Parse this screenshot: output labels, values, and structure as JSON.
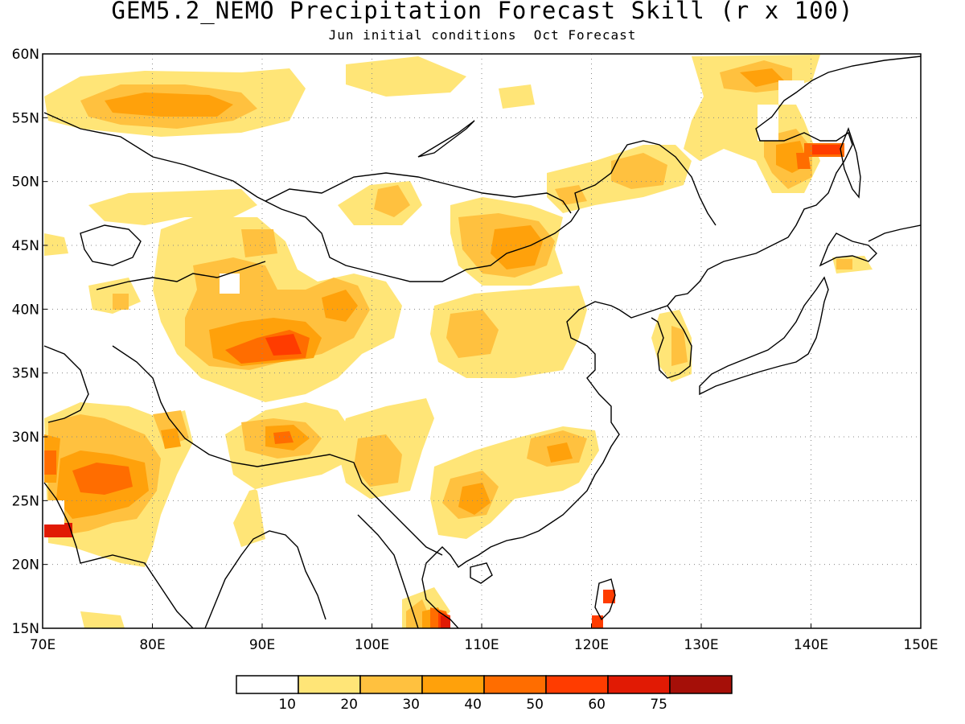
{
  "header": {
    "title": "GEM5.2_NEMO Precipitation Forecast Skill (r x 100)",
    "subtitle": "Jun initial conditions  Oct Forecast"
  },
  "map": {
    "lon_range": [
      70,
      150
    ],
    "lat_range": [
      15,
      60
    ],
    "lat_ticks": [
      "60N",
      "55N",
      "50N",
      "45N",
      "40N",
      "35N",
      "30N",
      "25N",
      "20N",
      "15N"
    ],
    "lon_ticks": [
      "70E",
      "80E",
      "90E",
      "100E",
      "110E",
      "120E",
      "130E",
      "140E",
      "150E"
    ],
    "grid": true,
    "grid_style": "dotted"
  },
  "colorbar": {
    "colors": [
      "#ffffff",
      "#ffe577",
      "#ffc13f",
      "#ffa10b",
      "#ff6d00",
      "#ff3c00",
      "#e11a04",
      "#a50f08"
    ],
    "labels": [
      "10",
      "20",
      "30",
      "40",
      "50",
      "60",
      "75"
    ]
  }
}
